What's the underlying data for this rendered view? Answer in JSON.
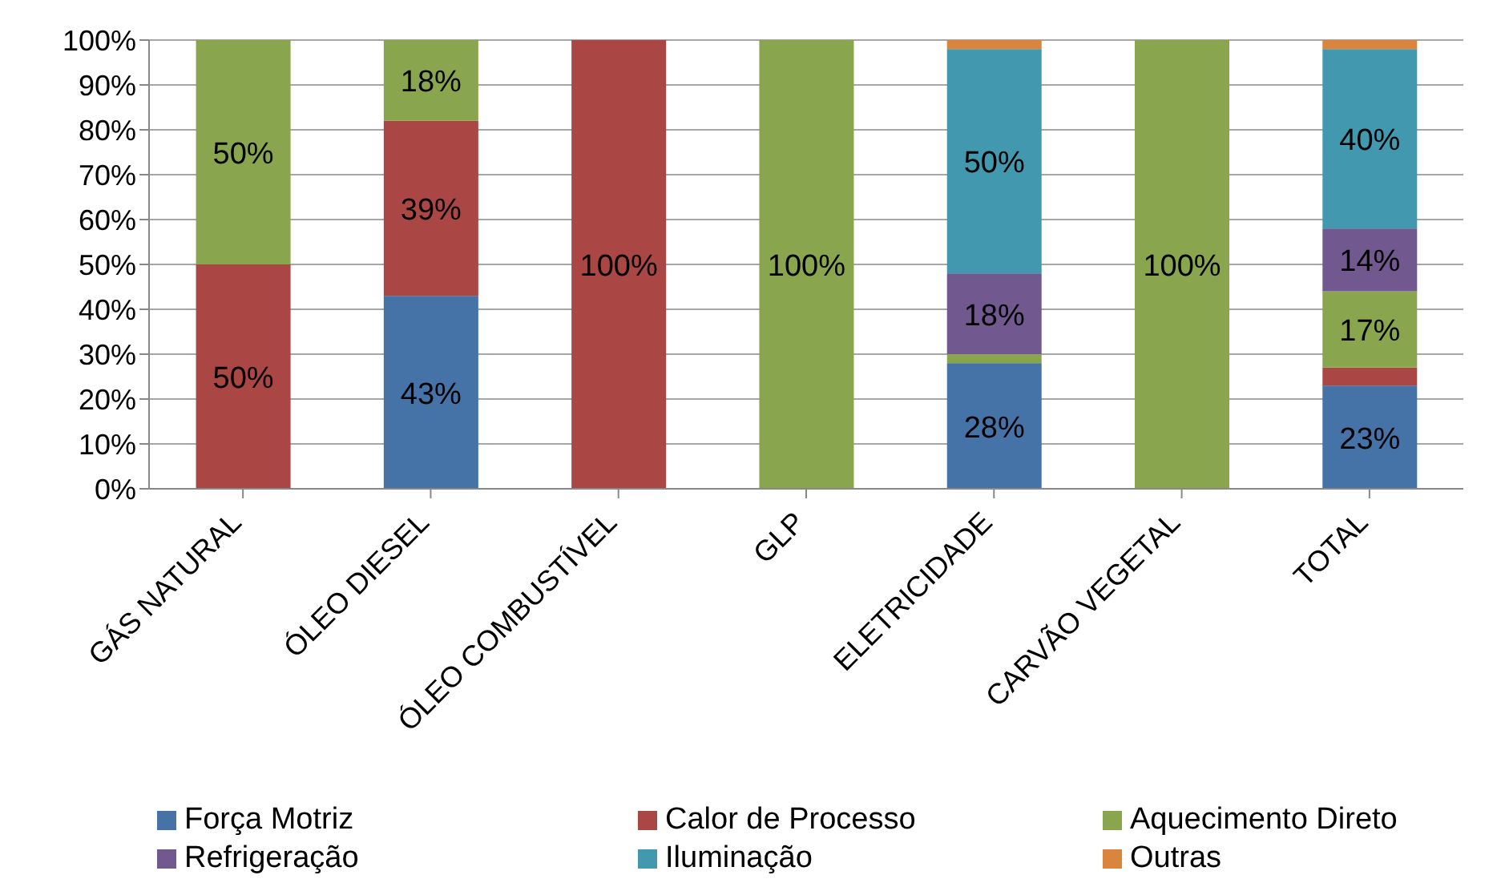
{
  "chart_data": {
    "type": "bar",
    "stacked": true,
    "categories": [
      "GÁS NATURAL",
      "ÓLEO DIESEL",
      "ÓLEO COMBUSTÍVEL",
      "GLP",
      "ELETRICIDADE",
      "CARVÃO VEGETAL",
      "TOTAL"
    ],
    "series": [
      {
        "name": "Força Motriz",
        "color": "#4572a7",
        "values": [
          0,
          43,
          0,
          0,
          28,
          0,
          23
        ],
        "value_labels": [
          null,
          "43%",
          null,
          null,
          "28%",
          null,
          "23%"
        ]
      },
      {
        "name": "Calor de Processo",
        "color": "#aa4643",
        "values": [
          50,
          39,
          100,
          0,
          0,
          0,
          4
        ],
        "value_labels": [
          "50%",
          "39%",
          "100%",
          null,
          null,
          null,
          null
        ]
      },
      {
        "name": "Aquecimento Direto",
        "color": "#89a54e",
        "values": [
          50,
          18,
          0,
          100,
          2,
          100,
          17
        ],
        "value_labels": [
          "50%",
          "18%",
          null,
          "100%",
          null,
          "100%",
          "17%"
        ]
      },
      {
        "name": "Refrigeração",
        "color": "#71588f",
        "values": [
          0,
          0,
          0,
          0,
          18,
          0,
          14
        ],
        "value_labels": [
          null,
          null,
          null,
          null,
          "18%",
          null,
          "14%"
        ]
      },
      {
        "name": "Iluminação",
        "color": "#4198af",
        "values": [
          0,
          0,
          0,
          0,
          50,
          0,
          40
        ],
        "value_labels": [
          null,
          null,
          null,
          null,
          "50%",
          null,
          "40%"
        ]
      },
      {
        "name": "Outras",
        "color": "#db843d",
        "values": [
          0,
          0,
          0,
          0,
          2,
          0,
          2
        ],
        "value_labels": [
          null,
          null,
          null,
          null,
          null,
          null,
          null
        ]
      }
    ],
    "ylim": [
      0,
      100
    ],
    "yticks": [
      {
        "value": 0,
        "label": "0%"
      },
      {
        "value": 10,
        "label": "10%"
      },
      {
        "value": 20,
        "label": "20%"
      },
      {
        "value": 30,
        "label": "30%"
      },
      {
        "value": 40,
        "label": "40%"
      },
      {
        "value": 50,
        "label": "50%"
      },
      {
        "value": 60,
        "label": "60%"
      },
      {
        "value": 70,
        "label": "70%"
      },
      {
        "value": 80,
        "label": "80%"
      },
      {
        "value": 90,
        "label": "90%"
      },
      {
        "value": 100,
        "label": "100%"
      }
    ],
    "grid": "y",
    "legend": "bottom"
  }
}
